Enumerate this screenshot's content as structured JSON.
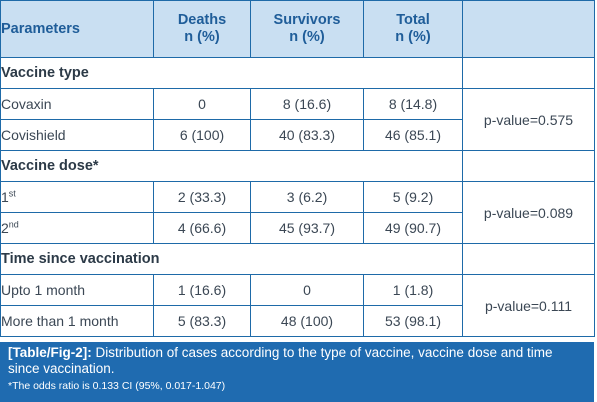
{
  "table": {
    "headers": {
      "parameters": "Parameters",
      "deaths_1": "Deaths",
      "deaths_2": "n (%)",
      "survivors_1": "Survivors",
      "survivors_2": "n (%)",
      "total_1": "Total",
      "total_2": "n (%)"
    },
    "sections": [
      {
        "title": "Vaccine type",
        "pvalue": "p-value=0.575",
        "rows": [
          {
            "label": "Covaxin",
            "sup": "",
            "deaths": "0",
            "survivors": "8 (16.6)",
            "total": "8 (14.8)"
          },
          {
            "label": "Covishield",
            "sup": "",
            "deaths": "6 (100)",
            "survivors": "40 (83.3)",
            "total": "46 (85.1)"
          }
        ]
      },
      {
        "title": "Vaccine dose*",
        "pvalue": "p-value=0.089",
        "rows": [
          {
            "label": "1",
            "sup": "st",
            "deaths": "2 (33.3)",
            "survivors": "3 (6.2)",
            "total": "5 (9.2)"
          },
          {
            "label": "2",
            "sup": "nd",
            "deaths": "4 (66.6)",
            "survivors": "45 (93.7)",
            "total": "49 (90.7)"
          }
        ]
      },
      {
        "title": "Time since vaccination",
        "pvalue": "p-value=0.111",
        "rows": [
          {
            "label": "Upto 1 month",
            "sup": "",
            "deaths": "1 (16.6)",
            "survivors": "0",
            "total": "1 (1.8)"
          },
          {
            "label": "More than 1 month",
            "sup": "",
            "deaths": "5 (83.3)",
            "survivors": "48 (100)",
            "total": "53 (98.1)"
          }
        ]
      }
    ]
  },
  "caption": {
    "tag": "[Table/Fig-2]:",
    "text": " Distribution of cases according to the type of vaccine, vaccine dose and time since vaccination.",
    "footnote": "*The odds ratio is 0.133 CI (95%, 0.017-1.047)"
  },
  "colors": {
    "header_bg": "#c9dff2",
    "header_text": "#1f5d99",
    "border": "#1e6aa8",
    "caption_bg": "#1f6bb0"
  }
}
